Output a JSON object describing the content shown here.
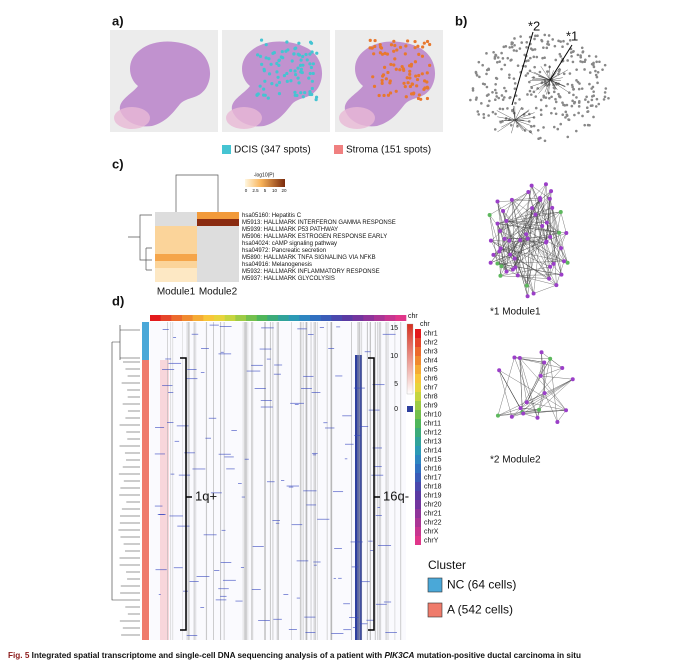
{
  "panel_a": {
    "label": "a)",
    "legend": [
      "DCIS (347 spots)",
      "Stroma (151 spots)"
    ]
  },
  "panel_b": {
    "label": "b)",
    "callouts": [
      "*2",
      "*1"
    ],
    "module1_caption": "*1 Module1",
    "module2_caption": "*2 Module2"
  },
  "panel_c": {
    "label": "c)",
    "scale_title": "-log10(P)",
    "scale_ticks": [
      "0",
      "2.5",
      "5",
      "10",
      "20"
    ],
    "terms": [
      "hsa05160: Hepatitis C",
      "M5913: HALLMARK INTERFERON GAMMA RESPONSE",
      "M5939: HALLMARK P53 PATHWAY",
      "M5906: HALLMARK ESTROGEN RESPONSE EARLY",
      "hsa04024: cAMP signaling pathway",
      "hsa04972: Pancreatic secretion",
      "M5890: HALLMARK TNFA SIGNALING VIA NFKB",
      "hsa04916: Melanogenesis",
      "M5932: HALLMARK INFLAMMATORY RESPONSE",
      "M5937: HALLMARK GLYCOLYSIS"
    ],
    "columns": [
      "Module1",
      "Module2"
    ]
  },
  "panel_d": {
    "label": "d)",
    "colorbar_title": "chr",
    "colorbar_ticks": [
      "15",
      "10",
      "5"
    ],
    "colorbar_low": "0",
    "chr_title": "chr",
    "chromosomes": [
      "chr1",
      "chr2",
      "chr3",
      "chr4",
      "chr5",
      "chr6",
      "chr7",
      "chr8",
      "chr9",
      "chr10",
      "chr11",
      "chr12",
      "chr13",
      "chr14",
      "chr15",
      "chr16",
      "chr17",
      "chr18",
      "chr19",
      "chr20",
      "chr21",
      "chr22",
      "chrX",
      "chrY"
    ],
    "annotations": [
      "1q+",
      "16q-"
    ],
    "cluster_title": "Cluster",
    "clusters": [
      "NC (64 cells)",
      "A (542 cells)"
    ]
  },
  "caption": {
    "prefix": "Fig. 5",
    "text": "Integrated spatial transcriptome and single-cell DNA sequencing analysis of a patient with",
    "gene": "PIK3CA",
    "rest": "mutation-positive ductal carcinoma in situ"
  }
}
